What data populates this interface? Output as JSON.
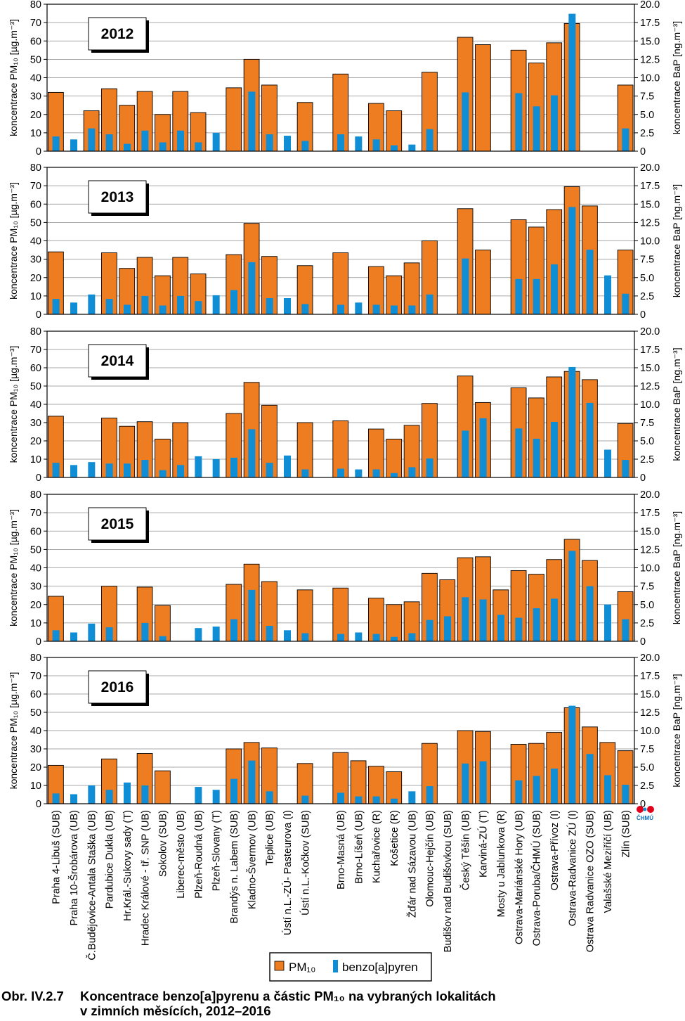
{
  "axis_labels": {
    "left": "koncentrace PM₁₀ [µg.m⁻³]",
    "right": "koncentrace BaP [ng.m⁻³]"
  },
  "logo_text": "ČHMÚ",
  "legend": {
    "pm10": "PM₁₀",
    "bap": "benzo[a]pyren"
  },
  "caption": {
    "label": "Obr. IV.2.7",
    "line1": "Koncentrace benzo[a]pyrenu a částic PM₁₀ na vybraných lokalitách",
    "line2": "v zimních měsících, 2012–2016"
  },
  "colors": {
    "pm10": "#ee7d22",
    "bap": "#0f8ed6",
    "frame": "#000000",
    "grid": "#8c8c8c"
  },
  "chart_data": {
    "type": "bar",
    "categories": [
      "Praha 4-Libuš (SUB)",
      "Praha 10-Šrobárova (UB)",
      "Č.Budějovice-Antala Staška (UB)",
      "Pardubice Dukla (UB)",
      "Hr.Král.-Sukovy sady (T)",
      "Hradec Králové - tř. SNP (UB)",
      "Sokolov (SUB)",
      "Liberec-město (UB)",
      "Plzeň-Roudná (UB)",
      "Plzeň-Slovany (T)",
      "Brandýs n. Labem (SUB)",
      "Kladno-Švermov (UB)",
      "Teplice (UB)",
      "Ústí n.L.-ZÚ- Pasteurova (I)",
      "Ústí n.L.-Kočkov (SUB)",
      "",
      "Brno-Masná (UB)",
      "Brno-Líšeň (UB)",
      "Kuchařovice (R)",
      "Košetice (R)",
      "Žďár nad Sázavou (UB)",
      "Olomouc-Hejčín (UB)",
      "Budišov nad Budišovkou (SUB)",
      "Český Těšín (UB)",
      "Karviná-ZÚ (T)",
      "Mosty u Jablunkova (R)",
      "Ostrava-Mariánské Hory (UB)",
      "Ostrava-Poruba/ČHMÚ (SUB)",
      "Ostrava-Přívoz (I)",
      "Ostrava-Radvanice ZÚ (I)",
      "Ostrava Radvanice OZO (SUB)",
      "Valašské Meziříčí (UB)",
      "Zlín (SUB)"
    ],
    "ylabel": "koncentrace PM₁₀ [µg.m⁻³]",
    "y2label": "koncentrace BaP [ng.m⁻³]",
    "ylim": [
      0,
      80
    ],
    "y2lim": [
      0,
      20
    ],
    "yticks": [
      "0",
      "10",
      "20",
      "30",
      "40",
      "50",
      "60",
      "70",
      "80"
    ],
    "y2ticks": [
      "0",
      "2.5",
      "5.0",
      "7.5",
      "10.0",
      "12.5",
      "15.0",
      "17.5",
      "20.0"
    ],
    "grid": "horizontal",
    "legend_position": "bottom-center",
    "panels": [
      {
        "year": "2012",
        "series": [
          {
            "name": "PM₁₀",
            "axis": "left",
            "values": [
              32,
              null,
              22,
              34,
              25,
              32.5,
              20,
              32.5,
              21,
              null,
              34.5,
              50,
              36,
              null,
              26.5,
              null,
              42,
              null,
              26,
              22,
              null,
              43,
              null,
              62,
              58,
              null,
              55,
              48,
              59,
              69.5,
              null,
              null,
              36
            ]
          },
          {
            "name": "benzo[a]pyren",
            "axis": "right",
            "values": [
              2,
              1.6,
              3.1,
              2.3,
              1,
              2.8,
              1.2,
              2.8,
              1.2,
              2.5,
              null,
              8.1,
              2.3,
              2.1,
              1.4,
              null,
              2.3,
              2,
              1.6,
              0.8,
              0.9,
              3,
              null,
              8,
              null,
              null,
              7.9,
              6.1,
              7.6,
              18.7,
              null,
              null,
              3.1
            ]
          }
        ]
      },
      {
        "year": "2013",
        "series": [
          {
            "name": "PM₁₀",
            "axis": "left",
            "values": [
              34,
              null,
              null,
              33.5,
              25,
              31,
              21,
              31,
              22,
              null,
              32.5,
              49.5,
              31.5,
              null,
              26.5,
              null,
              33.5,
              null,
              26,
              21,
              28,
              40,
              null,
              57.5,
              35,
              null,
              51.5,
              47.5,
              57,
              69.5,
              59,
              null,
              35
            ]
          },
          {
            "name": "benzo[a]pyren",
            "axis": "right",
            "values": [
              2.1,
              1.6,
              2.7,
              2.1,
              1.3,
              2.5,
              1.2,
              2.5,
              1.8,
              2.6,
              3.3,
              7.1,
              2.2,
              2.2,
              1.4,
              null,
              1.3,
              1.6,
              1.3,
              1.2,
              1.2,
              2.7,
              null,
              7.6,
              null,
              null,
              4.8,
              4.8,
              6.8,
              14.6,
              8.8,
              5.3,
              2.8
            ]
          }
        ]
      },
      {
        "year": "2014",
        "series": [
          {
            "name": "PM₁₀",
            "axis": "left",
            "values": [
              33.5,
              null,
              null,
              32.5,
              28,
              30.5,
              21,
              30,
              null,
              null,
              35,
              52,
              39.5,
              null,
              30,
              null,
              31,
              null,
              26.5,
              21,
              28.5,
              40.5,
              null,
              55.5,
              41,
              null,
              49,
              43.5,
              55,
              58,
              53.5,
              null,
              29.5
            ]
          },
          {
            "name": "benzo[a]pyren",
            "axis": "right",
            "values": [
              2,
              1.7,
              2.1,
              1.9,
              1.9,
              2.4,
              1,
              1.7,
              2.9,
              2.5,
              2.7,
              6.6,
              2,
              3,
              1.1,
              null,
              1.2,
              1.1,
              1.1,
              0.6,
              1.4,
              2.6,
              null,
              6.4,
              8.1,
              null,
              6.7,
              5.3,
              7.6,
              15.1,
              10.2,
              3.8,
              2.4
            ]
          }
        ]
      },
      {
        "year": "2015",
        "series": [
          {
            "name": "PM₁₀",
            "axis": "left",
            "values": [
              24.5,
              null,
              null,
              30,
              null,
              29.5,
              19.5,
              null,
              null,
              null,
              31,
              42,
              32.5,
              null,
              28,
              null,
              29,
              null,
              23.5,
              20,
              21.5,
              37,
              33.5,
              45.5,
              46,
              28,
              38.5,
              36.5,
              44.5,
              55.5,
              44,
              null,
              27
            ]
          },
          {
            "name": "benzo[a]pyren",
            "axis": "right",
            "values": [
              1.5,
              1.2,
              2.4,
              1.9,
              null,
              2.5,
              0.7,
              null,
              1.8,
              2,
              3,
              7,
              2.1,
              1.5,
              1.1,
              null,
              1,
              1.2,
              1,
              0.6,
              1.1,
              2.9,
              3.4,
              6,
              5.7,
              3.6,
              3.2,
              4.5,
              5.8,
              12.3,
              7.5,
              5,
              3
            ]
          }
        ]
      },
      {
        "year": "2016",
        "series": [
          {
            "name": "PM₁₀",
            "axis": "left",
            "values": [
              21,
              null,
              null,
              24.5,
              null,
              27.5,
              18,
              null,
              null,
              null,
              30,
              33.5,
              30.5,
              null,
              22,
              null,
              28,
              23.5,
              20.5,
              17.5,
              null,
              33,
              null,
              40,
              39.5,
              null,
              32.5,
              33,
              39,
              52.5,
              42,
              33.5,
              29
            ]
          },
          {
            "name": "benzo[a]pyren",
            "axis": "right",
            "values": [
              1.4,
              1.3,
              2.5,
              1.9,
              2.9,
              2.5,
              null,
              null,
              2.3,
              1.9,
              3.4,
              5.9,
              1.7,
              null,
              1.1,
              null,
              1.5,
              1,
              1,
              0.7,
              1.7,
              2.4,
              null,
              5.5,
              5.8,
              null,
              3.2,
              3.8,
              4.8,
              13.4,
              6.8,
              3.9,
              2.6
            ]
          }
        ]
      }
    ]
  }
}
